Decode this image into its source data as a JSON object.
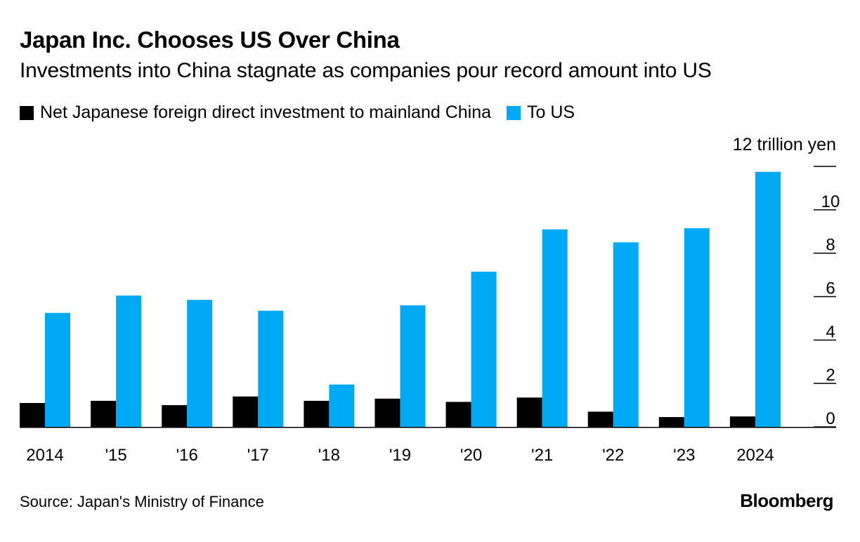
{
  "header": {
    "title": "Japan Inc. Chooses US Over China",
    "subtitle": "Investments into China stagnate as companies pour record amount into US"
  },
  "footer": {
    "source": "Source: Japan's Ministry of Finance",
    "brand": "Bloomberg"
  },
  "colors": {
    "china": "#000000",
    "us": "#00a9f4",
    "axis": "#000000"
  },
  "chart_data": {
    "type": "bar",
    "title": "Japan Inc. Chooses US Over China",
    "subtitle": "Investments into China stagnate as companies pour record amount into US",
    "unit_label": "12 trillion yen",
    "categories": [
      "2014",
      "'15",
      "'16",
      "'17",
      "'18",
      "'19",
      "'20",
      "'21",
      "'22",
      "'23",
      "2024"
    ],
    "series": [
      {
        "name": "Net Japanese foreign direct investment to mainland China",
        "color": "#000000",
        "values": [
          1.1,
          1.2,
          1.0,
          1.4,
          1.2,
          1.3,
          1.15,
          1.35,
          0.7,
          0.45,
          0.48
        ]
      },
      {
        "name": "To US",
        "color": "#00a9f4",
        "values": [
          5.25,
          6.05,
          5.85,
          5.35,
          1.95,
          5.6,
          7.15,
          9.1,
          8.5,
          9.15,
          11.75
        ]
      }
    ],
    "y_ticks": [
      "0",
      "2",
      "4",
      "6",
      "8",
      "10"
    ],
    "y_tick_values": [
      0,
      2,
      4,
      6,
      8,
      10
    ],
    "ylim": [
      0,
      12
    ],
    "y_axis_position": "right",
    "legend_position": "top-left",
    "grid": false,
    "xlabel": "",
    "ylabel": ""
  }
}
